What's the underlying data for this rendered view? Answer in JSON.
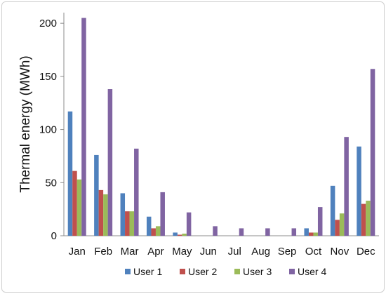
{
  "chart_data": {
    "type": "bar",
    "title": "",
    "xlabel": "",
    "ylabel": "Thermal energy (MWh)",
    "ylim": [
      0,
      210
    ],
    "yticks": [
      0,
      50,
      100,
      150,
      200
    ],
    "grid": false,
    "legend_position": "bottom",
    "categories": [
      "Jan",
      "Feb",
      "Mar",
      "Apr",
      "May",
      "Jun",
      "Jul",
      "Aug",
      "Sep",
      "Oct",
      "Nov",
      "Dec"
    ],
    "series": [
      {
        "name": "User 1",
        "color": "#4f81bd",
        "values": [
          117,
          76,
          40,
          18,
          3,
          0,
          0,
          0,
          0,
          7,
          47,
          84
        ]
      },
      {
        "name": "User 2",
        "color": "#c0504d",
        "values": [
          61,
          43,
          23,
          7,
          1,
          0,
          0,
          0,
          0,
          3,
          15,
          30
        ]
      },
      {
        "name": "User 3",
        "color": "#9bbb59",
        "values": [
          53,
          39,
          23,
          9,
          2,
          0,
          0,
          0,
          0,
          3,
          21,
          33
        ]
      },
      {
        "name": "User 4",
        "color": "#8064a2",
        "values": [
          205,
          138,
          82,
          41,
          22,
          9,
          7,
          7,
          7,
          27,
          93,
          157
        ]
      }
    ]
  }
}
